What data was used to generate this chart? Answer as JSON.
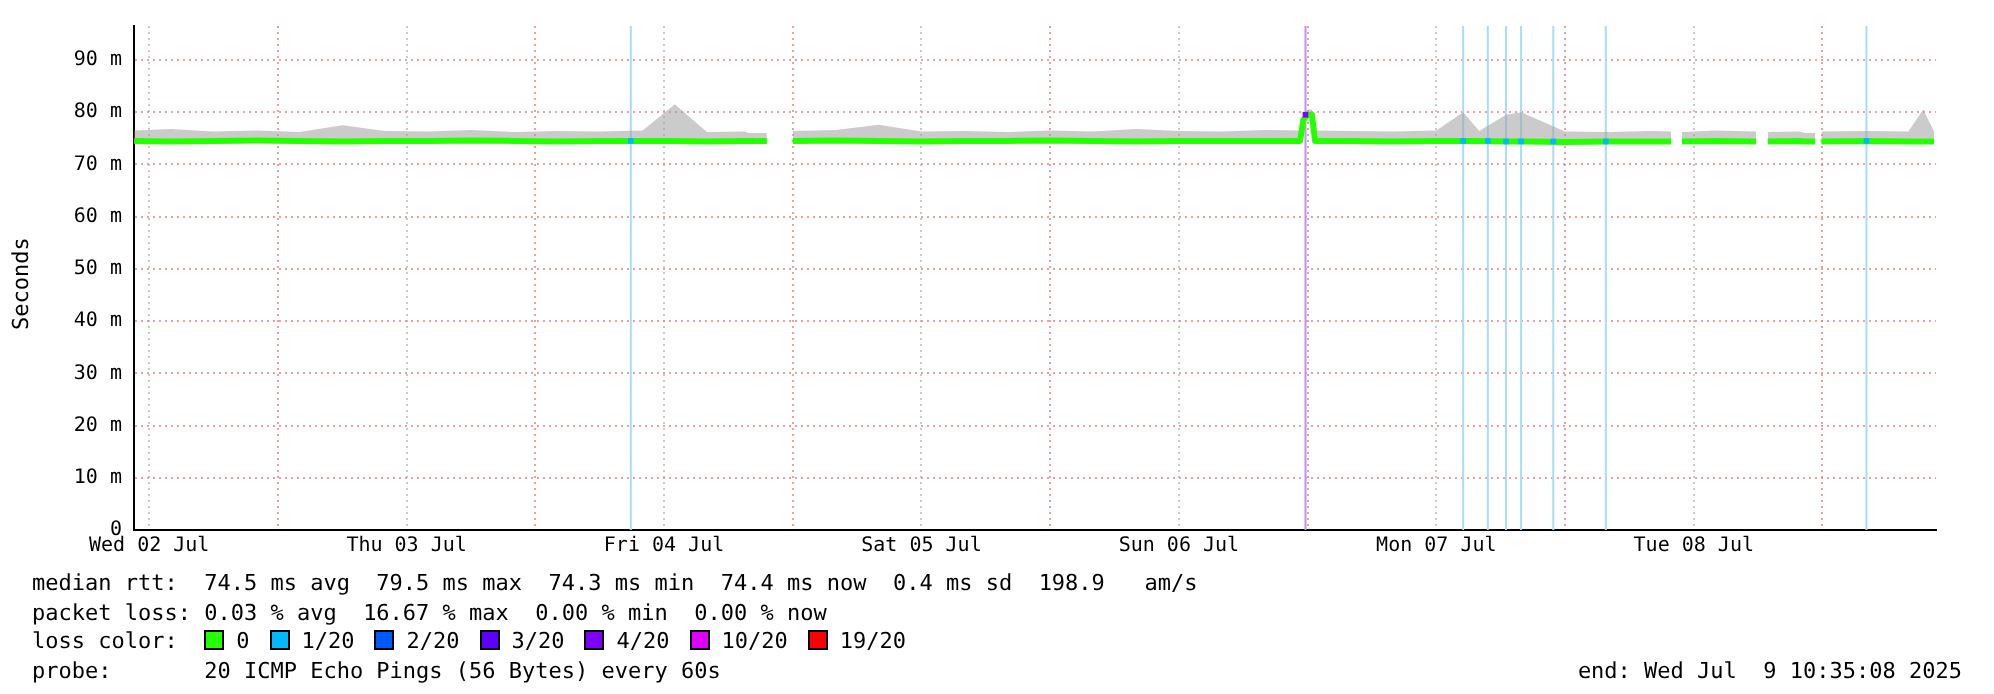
{
  "chart_data": {
    "type": "line",
    "ylabel": "Seconds",
    "legend_title": "loss color:",
    "legend": "bottom",
    "grid": true,
    "line_style": "solid",
    "xlim": [
      "2025-07-02T10:35",
      "2025-07-09T10:35"
    ],
    "xticks": [
      {
        "value": "2025-07-02T12:00",
        "label": "Wed 02 Jul"
      },
      {
        "value": "2025-07-03T00:00",
        "label": null
      },
      {
        "value": "2025-07-03T12:00",
        "label": "Thu 03 Jul"
      },
      {
        "value": "2025-07-04T00:00",
        "label": null
      },
      {
        "value": "2025-07-04T12:00",
        "label": "Fri 04 Jul"
      },
      {
        "value": "2025-07-05T00:00",
        "label": null
      },
      {
        "value": "2025-07-05T12:00",
        "label": "Sat 05 Jul"
      },
      {
        "value": "2025-07-06T00:00",
        "label": null
      },
      {
        "value": "2025-07-06T12:00",
        "label": "Sun 06 Jul"
      },
      {
        "value": "2025-07-07T00:00",
        "label": null
      },
      {
        "value": "2025-07-07T12:00",
        "label": "Mon 07 Jul"
      },
      {
        "value": "2025-07-08T00:00",
        "label": null
      },
      {
        "value": "2025-07-08T12:00",
        "label": "Tue 08 Jul"
      },
      {
        "value": "2025-07-09T00:00",
        "label": null
      }
    ],
    "ylim": [
      0,
      96.5
    ],
    "yticks": [
      0,
      {
        "value": 10,
        "label": "10 m"
      },
      {
        "value": 20,
        "label": "20 m"
      },
      {
        "value": 30,
        "label": "30 m"
      },
      {
        "value": 40,
        "label": "40 m"
      },
      {
        "value": 50,
        "label": "50 m"
      },
      {
        "value": 60,
        "label": "60 m"
      },
      {
        "value": 70,
        "label": "70 m"
      },
      {
        "value": 80,
        "label": "80 m"
      },
      {
        "value": 90,
        "label": "90 m"
      }
    ],
    "x": [
      "2025-07-02T10:36",
      "2025-07-02T14:00",
      "2025-07-02T18:00",
      "2025-07-02T22:00",
      "2025-07-03T02:00",
      "2025-07-03T06:00",
      "2025-07-03T10:00",
      "2025-07-03T14:00",
      "2025-07-03T18:00",
      "2025-07-03T22:00",
      "2025-07-04T02:00",
      "2025-07-04T06:00",
      "2025-07-04T10:00",
      "2025-07-04T13:00",
      "2025-07-04T16:00",
      "2025-07-04T19:30",
      "2025-07-04T19:54",
      "2025-07-04T20:15",
      "2025-07-04T21:35",
      "2025-07-04T22:00",
      "2025-07-05T00:00",
      "2025-07-05T04:00",
      "2025-07-05T08:00",
      "2025-07-05T12:00",
      "2025-07-05T16:00",
      "2025-07-05T20:00",
      "2025-07-06T00:00",
      "2025-07-06T04:00",
      "2025-07-06T08:00",
      "2025-07-06T12:00",
      "2025-07-06T16:00",
      "2025-07-06T20:00",
      "2025-07-06T23:18",
      "2025-07-06T23:36",
      "2025-07-07T00:00",
      "2025-07-07T00:24",
      "2025-07-07T00:42",
      "2025-07-07T04:00",
      "2025-07-07T08:00",
      "2025-07-07T12:00",
      "2025-07-07T14:30",
      "2025-07-07T16:00",
      "2025-07-07T18:30",
      "2025-07-07T19:54",
      "2025-07-08T00:00",
      "2025-07-08T04:00",
      "2025-07-08T08:00",
      "2025-07-08T09:54",
      "2025-07-08T10:24",
      "2025-07-08T10:54",
      "2025-07-08T14:00",
      "2025-07-08T17:48",
      "2025-07-08T18:18",
      "2025-07-08T18:54",
      "2025-07-08T21:54",
      "2025-07-08T22:18",
      "2025-07-08T22:36",
      "2025-07-08T23:20",
      "2025-07-08T23:30",
      "2025-07-08T23:54",
      "2025-07-09T04:00",
      "2025-07-09T08:00",
      "2025-07-09T09:24",
      "2025-07-09T10:24"
    ],
    "series": [
      {
        "name": "0",
        "color": "#26ff00",
        "values": [
          74.5,
          74.4,
          74.5,
          74.6,
          74.5,
          74.4,
          74.5,
          74.5,
          74.6,
          74.5,
          74.4,
          74.5,
          74.5,
          74.5,
          74.4,
          74.5,
          74.5,
          74.5,
          74.5,
          null,
          74.5,
          74.6,
          74.5,
          74.4,
          74.5,
          74.5,
          74.6,
          74.5,
          74.4,
          74.5,
          74.5,
          74.5,
          74.5,
          78.5,
          79.5,
          79.5,
          74.5,
          74.5,
          74.4,
          74.5,
          74.5,
          74.5,
          74.4,
          74.4,
          74.3,
          74.4,
          74.4,
          74.4,
          null,
          74.4,
          74.5,
          74.4,
          null,
          74.4,
          74.5,
          74.4,
          74.4,
          74.4,
          null,
          74.4,
          74.5,
          74.4,
          74.4,
          74.4
        ],
        "lower": [
          74.0,
          74.0,
          74.0,
          74.1,
          74.0,
          74.0,
          74.0,
          74.0,
          74.1,
          74.0,
          74.0,
          74.0,
          74.0,
          74.0,
          74.0,
          74.0,
          74.0,
          74.0,
          74.0,
          null,
          74.0,
          74.1,
          74.0,
          74.0,
          74.0,
          74.0,
          74.1,
          74.0,
          74.0,
          74.0,
          74.0,
          74.0,
          74.0,
          78.0,
          79.0,
          79.0,
          74.0,
          74.0,
          74.0,
          74.0,
          74.0,
          74.0,
          74.0,
          74.0,
          73.9,
          74.0,
          74.0,
          74.0,
          null,
          74.0,
          74.0,
          74.0,
          null,
          74.0,
          74.0,
          74.0,
          74.0,
          74.0,
          null,
          74.0,
          74.0,
          74.0,
          74.0,
          74.0
        ],
        "upper": [
          76.5,
          76.8,
          76.3,
          76.5,
          76.2,
          77.5,
          76.4,
          76.3,
          76.6,
          76.2,
          76.4,
          76.3,
          76.5,
          81.5,
          76.2,
          76.3,
          76.0,
          76.0,
          76.0,
          null,
          76.4,
          76.6,
          77.6,
          76.3,
          76.4,
          76.2,
          76.5,
          76.3,
          76.8,
          76.4,
          76.3,
          76.6,
          76.5,
          79.0,
          80.5,
          80.5,
          76.5,
          76.4,
          76.3,
          76.5,
          80.0,
          76.4,
          79.5,
          80.0,
          76.3,
          76.2,
          76.4,
          76.3,
          null,
          76.2,
          76.5,
          76.3,
          null,
          76.2,
          76.3,
          76.0,
          76.0,
          76.0,
          null,
          76.3,
          76.4,
          76.3,
          80.5,
          76.3
        ]
      },
      {
        "name": "1/20",
        "color": "#00b8ff",
        "type": "scatter",
        "x": [
          "2025-07-04T08:54",
          "2025-07-07T14:30",
          "2025-07-07T16:48",
          "2025-07-07T18:30",
          "2025-07-07T19:54",
          "2025-07-07T22:54",
          "2025-07-08T03:48",
          "2025-07-09T04:06"
        ],
        "values": [
          74.5,
          74.5,
          74.5,
          74.4,
          74.4,
          74.4,
          74.4,
          74.5
        ]
      },
      {
        "name": "2/20",
        "color": "#0059ff",
        "values": [
          null,
          null,
          null,
          null,
          null,
          null,
          null,
          null,
          null,
          null,
          null,
          null,
          null,
          null,
          null,
          null,
          null,
          null,
          null,
          null,
          null,
          null,
          null,
          null,
          null,
          null,
          null,
          null,
          null,
          null,
          null,
          null,
          null,
          null,
          null,
          null,
          null,
          null,
          null,
          null,
          null,
          null,
          null,
          null,
          null,
          null,
          null,
          null,
          null,
          null,
          null,
          null,
          null,
          null,
          null,
          null,
          null,
          null,
          null,
          null,
          null,
          null,
          null,
          null
        ]
      },
      {
        "name": "3/20",
        "color": "#5e00ff",
        "values": [
          null,
          null,
          null,
          null,
          null,
          null,
          null,
          null,
          null,
          null,
          null,
          null,
          null,
          null,
          null,
          null,
          null,
          null,
          null,
          null,
          null,
          null,
          null,
          null,
          null,
          null,
          null,
          null,
          null,
          null,
          null,
          null,
          null,
          null,
          null,
          null,
          null,
          null,
          null,
          null,
          null,
          null,
          null,
          null,
          null,
          null,
          null,
          null,
          null,
          null,
          null,
          null,
          null,
          null,
          null,
          null,
          null,
          null,
          null,
          null,
          null,
          null,
          null,
          null
        ]
      },
      {
        "name": "4/20",
        "color": "#7e00ff",
        "type": "scatter",
        "x": [
          "2025-07-06T23:48"
        ],
        "values": [
          79.5
        ]
      },
      {
        "name": "10/20",
        "color": "#dd00ff",
        "values": [
          null,
          null,
          null,
          null,
          null,
          null,
          null,
          null,
          null,
          null,
          null,
          null,
          null,
          null,
          null,
          null,
          null,
          null,
          null,
          null,
          null,
          null,
          null,
          null,
          null,
          null,
          null,
          null,
          null,
          null,
          null,
          null,
          null,
          null,
          null,
          null,
          null,
          null,
          null,
          null,
          null,
          null,
          null,
          null,
          null,
          null,
          null,
          null,
          null,
          null,
          null,
          null,
          null,
          null,
          null,
          null,
          null,
          null,
          null,
          null,
          null,
          null,
          null,
          null
        ]
      },
      {
        "name": "19/20",
        "color": "#ff0000",
        "values": [
          null,
          null,
          null,
          null,
          null,
          null,
          null,
          null,
          null,
          null,
          null,
          null,
          null,
          null,
          null,
          null,
          null,
          null,
          null,
          null,
          null,
          null,
          null,
          null,
          null,
          null,
          null,
          null,
          null,
          null,
          null,
          null,
          null,
          null,
          null,
          null,
          null,
          null,
          null,
          null,
          null,
          null,
          null,
          null,
          null,
          null,
          null,
          null,
          null,
          null,
          null,
          null,
          null,
          null,
          null,
          null,
          null,
          null,
          null,
          null,
          null,
          null,
          null,
          null
        ]
      }
    ],
    "ref_lines": [
      {
        "axis": "x",
        "value": "2025-07-04T08:54",
        "color": "#a8dcf8"
      },
      {
        "axis": "x",
        "value": "2025-07-06T23:48",
        "color": "#c890f0"
      },
      {
        "axis": "x",
        "value": "2025-07-07T14:30",
        "color": "#a8dcf8"
      },
      {
        "axis": "x",
        "value": "2025-07-07T16:48",
        "color": "#a8dcf8"
      },
      {
        "axis": "x",
        "value": "2025-07-07T18:30",
        "color": "#a8dcf8"
      },
      {
        "axis": "x",
        "value": "2025-07-07T19:54",
        "color": "#a8dcf8"
      },
      {
        "axis": "x",
        "value": "2025-07-07T22:54",
        "color": "#a8dcf8"
      },
      {
        "axis": "x",
        "value": "2025-07-08T03:48",
        "color": "#a8dcf8"
      },
      {
        "axis": "x",
        "value": "2025-07-09T04:06",
        "color": "#a8dcf8"
      }
    ],
    "annotations": [
      "median rtt:  74.5 ms avg  79.5 ms max  74.3 ms min  74.4 ms now  0.4 ms sd  198.9   am/s",
      "packet loss: 0.03 % avg  16.67 % max  0.00 % min  0.00 % now",
      "probe:       20 ICMP Echo Pings (56 Bytes) every 60s",
      "end: Wed Jul  9 10:35:08 2025"
    ]
  }
}
